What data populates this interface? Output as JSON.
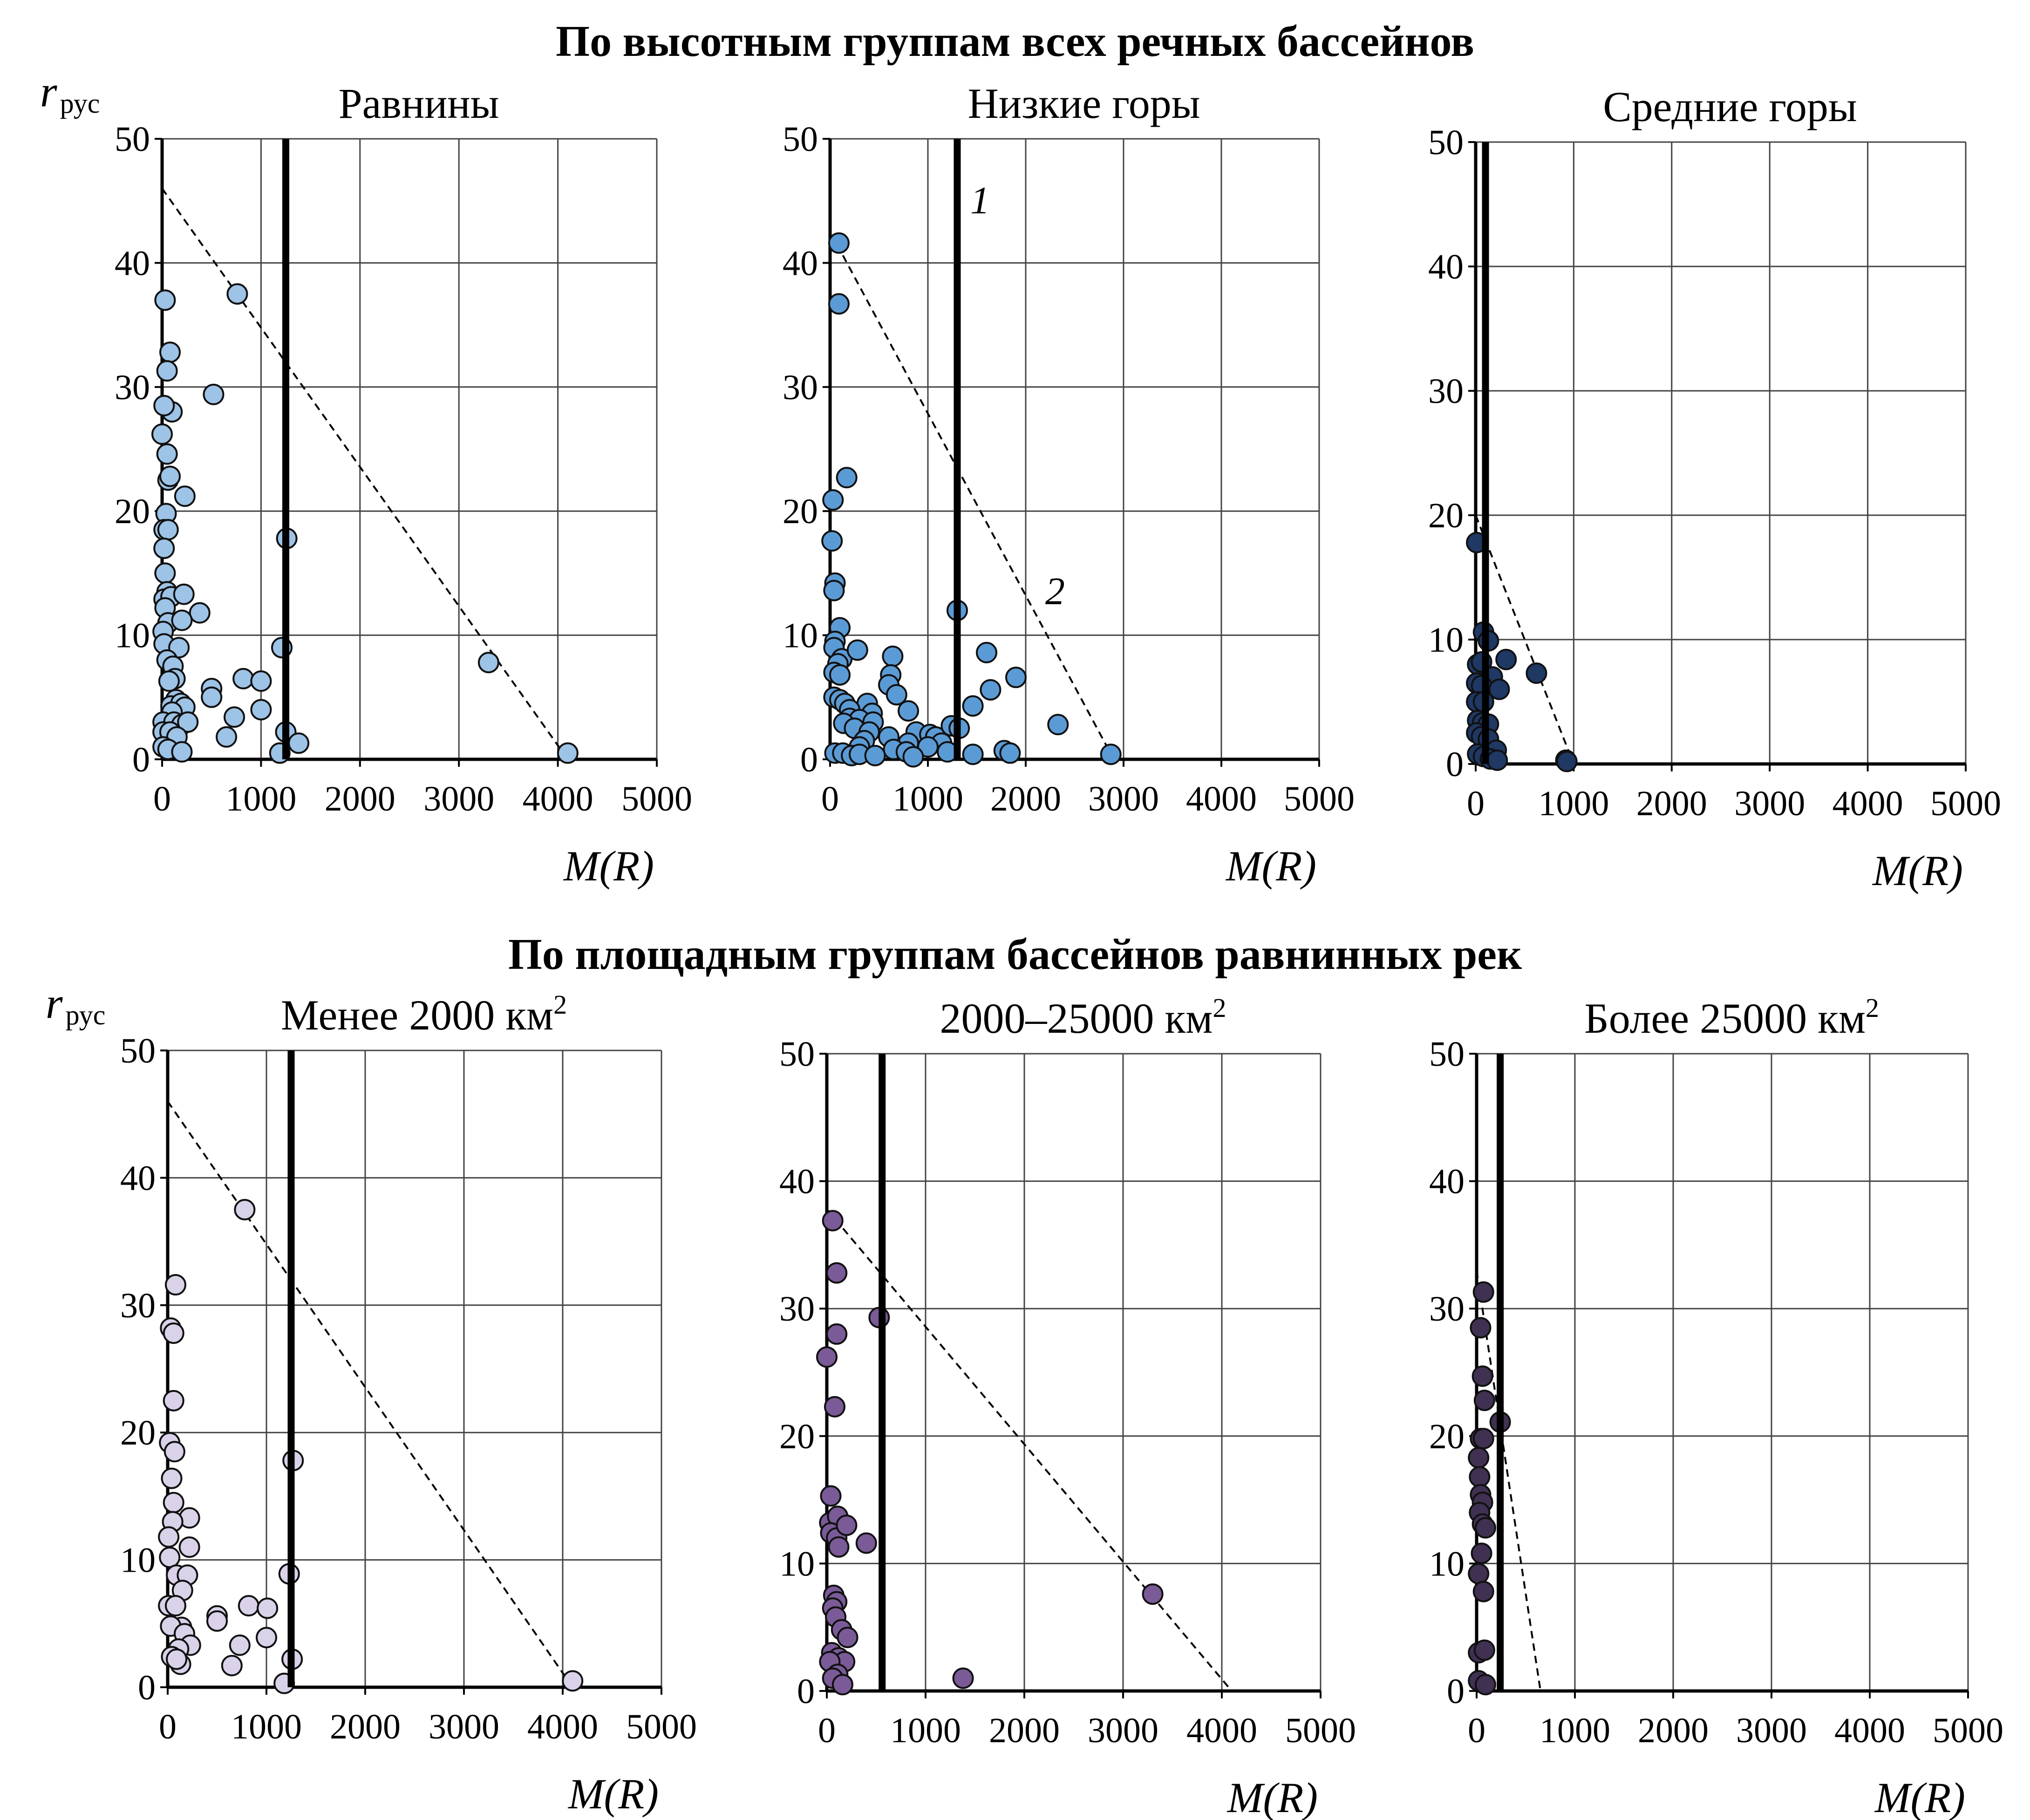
{
  "figure": {
    "section_titles": [
      "По высотным группам всех речных бассейнов",
      "По площадным группам бассейнов равнинных рек"
    ]
  },
  "chart_data": [
    {
      "type": "scatter",
      "section": 0,
      "title": "Равнины",
      "ylabel": "r",
      "ylabel_sub": "рус",
      "xlabel": "M(R)",
      "xlim": [
        0,
        5000
      ],
      "ylim": [
        0,
        50
      ],
      "xticks": [
        0,
        1000,
        2000,
        3000,
        4000,
        5000
      ],
      "yticks": [
        0,
        10,
        20,
        30,
        40,
        50
      ],
      "grid": true,
      "marker_color": "#9dc3e6",
      "vline_x": 1250,
      "dashed_line": [
        [
          0,
          46
        ],
        [
          4100,
          0
        ]
      ],
      "points": [
        [
          30,
          37
        ],
        [
          80,
          32.8
        ],
        [
          50,
          31.3
        ],
        [
          100,
          28
        ],
        [
          20,
          28.5
        ],
        [
          520,
          29.4
        ],
        [
          0,
          26.2
        ],
        [
          760,
          37.5
        ],
        [
          50,
          24.6
        ],
        [
          230,
          21.2
        ],
        [
          60,
          22.5
        ],
        [
          80,
          22.8
        ],
        [
          40,
          19.8
        ],
        [
          20,
          18.5
        ],
        [
          60,
          18.5
        ],
        [
          1260,
          17.8
        ],
        [
          20,
          17
        ],
        [
          30,
          15
        ],
        [
          50,
          13.5
        ],
        [
          20,
          12.9
        ],
        [
          90,
          13.1
        ],
        [
          220,
          13.3
        ],
        [
          380,
          11.8
        ],
        [
          30,
          12.2
        ],
        [
          60,
          11
        ],
        [
          10,
          10.3
        ],
        [
          200,
          11.2
        ],
        [
          20,
          9.3
        ],
        [
          170,
          9
        ],
        [
          50,
          8
        ],
        [
          1210,
          9
        ],
        [
          110,
          7.5
        ],
        [
          130,
          6.5
        ],
        [
          70,
          6.3
        ],
        [
          820,
          6.5
        ],
        [
          1000,
          6.3
        ],
        [
          500,
          5.7
        ],
        [
          140,
          4.8
        ],
        [
          90,
          4.3
        ],
        [
          190,
          4.5
        ],
        [
          230,
          4.2
        ],
        [
          100,
          3.8
        ],
        [
          500,
          5
        ],
        [
          1000,
          4
        ],
        [
          730,
          3.4
        ],
        [
          650,
          1.8
        ],
        [
          10,
          3
        ],
        [
          120,
          3
        ],
        [
          200,
          2.8
        ],
        [
          260,
          3
        ],
        [
          10,
          2.2
        ],
        [
          80,
          2.2
        ],
        [
          150,
          1.8
        ],
        [
          1250,
          2.2
        ],
        [
          1380,
          1.3
        ],
        [
          10,
          1
        ],
        [
          60,
          0.8
        ],
        [
          200,
          0.6
        ],
        [
          1190,
          0.5
        ],
        [
          4100,
          0.5
        ],
        [
          3300,
          7.8
        ]
      ]
    },
    {
      "type": "scatter",
      "section": 0,
      "title": "Низкие горы",
      "ylabel": "",
      "ylabel_sub": "",
      "xlabel": "M(R)",
      "xlim": [
        0,
        5000
      ],
      "ylim": [
        0,
        50
      ],
      "xticks": [
        0,
        1000,
        2000,
        3000,
        4000,
        5000
      ],
      "yticks": [
        0,
        10,
        20,
        30,
        40,
        50
      ],
      "grid": true,
      "marker_color": "#5b9bd5",
      "vline_x": 1300,
      "vline_label": "1",
      "dashed_line": [
        [
          70,
          41.5
        ],
        [
          2900,
          0
        ]
      ],
      "dashed_label": "2",
      "points": [
        [
          90,
          41.6
        ],
        [
          90,
          36.7
        ],
        [
          170,
          22.7
        ],
        [
          30,
          20.9
        ],
        [
          20,
          17.6
        ],
        [
          50,
          14.2
        ],
        [
          40,
          13.6
        ],
        [
          1300,
          12
        ],
        [
          100,
          10.6
        ],
        [
          50,
          9.5
        ],
        [
          40,
          9
        ],
        [
          120,
          8.1
        ],
        [
          80,
          7.7
        ],
        [
          40,
          7
        ],
        [
          100,
          6.8
        ],
        [
          1600,
          8.6
        ],
        [
          1900,
          6.6
        ],
        [
          640,
          8.3
        ],
        [
          620,
          6.8
        ],
        [
          600,
          6
        ],
        [
          680,
          5.2
        ],
        [
          1640,
          5.6
        ],
        [
          40,
          5
        ],
        [
          100,
          4.8
        ],
        [
          150,
          4.5
        ],
        [
          280,
          8.8
        ],
        [
          380,
          4.5
        ],
        [
          200,
          4
        ],
        [
          430,
          3.7
        ],
        [
          800,
          3.9
        ],
        [
          1460,
          4.3
        ],
        [
          200,
          3.3
        ],
        [
          300,
          3.2
        ],
        [
          440,
          3
        ],
        [
          140,
          2.9
        ],
        [
          250,
          2.5
        ],
        [
          880,
          2.2
        ],
        [
          1020,
          2
        ],
        [
          1080,
          1.8
        ],
        [
          1240,
          2.7
        ],
        [
          1320,
          2.5
        ],
        [
          2330,
          2.8
        ],
        [
          400,
          2.2
        ],
        [
          600,
          1.8
        ],
        [
          350,
          1.5
        ],
        [
          800,
          1.3
        ],
        [
          1140,
          1.3
        ],
        [
          1000,
          1
        ],
        [
          300,
          1
        ],
        [
          650,
          0.8
        ],
        [
          1780,
          0.7
        ],
        [
          1840,
          0.5
        ],
        [
          1460,
          0.4
        ],
        [
          50,
          0.5
        ],
        [
          130,
          0.5
        ],
        [
          220,
          0.3
        ],
        [
          300,
          0.4
        ],
        [
          460,
          0.3
        ],
        [
          780,
          0.6
        ],
        [
          850,
          0.2
        ],
        [
          1200,
          0.6
        ],
        [
          2870,
          0.4
        ]
      ]
    },
    {
      "type": "scatter",
      "section": 0,
      "title": "Средние горы",
      "ylabel": "",
      "ylabel_sub": "",
      "xlabel": "M(R)",
      "xlim": [
        0,
        5000
      ],
      "ylim": [
        0,
        50
      ],
      "xticks": [
        0,
        1000,
        2000,
        3000,
        4000,
        5000
      ],
      "yticks": [
        0,
        10,
        20,
        30,
        40,
        50
      ],
      "grid": true,
      "marker_color": "#1f3864",
      "vline_x": 100,
      "dashed_line": [
        [
          0,
          20
        ],
        [
          1000,
          0
        ]
      ],
      "points": [
        [
          10,
          17.8
        ],
        [
          80,
          10.6
        ],
        [
          130,
          9.9
        ],
        [
          20,
          8
        ],
        [
          60,
          8.2
        ],
        [
          170,
          7
        ],
        [
          310,
          8.4
        ],
        [
          620,
          7.3
        ],
        [
          10,
          6.5
        ],
        [
          60,
          6.3
        ],
        [
          240,
          6
        ],
        [
          10,
          5
        ],
        [
          80,
          5
        ],
        [
          20,
          3.5
        ],
        [
          70,
          3.3
        ],
        [
          130,
          3.2
        ],
        [
          10,
          2.5
        ],
        [
          60,
          2.2
        ],
        [
          130,
          2
        ],
        [
          210,
          1.1
        ],
        [
          20,
          0.8
        ],
        [
          80,
          0.6
        ],
        [
          150,
          0.4
        ],
        [
          220,
          0.3
        ],
        [
          920,
          0.3
        ],
        [
          930,
          0.2
        ]
      ]
    },
    {
      "type": "scatter",
      "section": 1,
      "title": "Менее 2000 км",
      "title_sup": "2",
      "ylabel": "r",
      "ylabel_sub": "рус",
      "xlabel": "M(R)",
      "xlim": [
        0,
        5000
      ],
      "ylim": [
        0,
        50
      ],
      "xticks": [
        0,
        1000,
        2000,
        3000,
        4000,
        5000
      ],
      "yticks": [
        0,
        10,
        20,
        30,
        40,
        50
      ],
      "grid": true,
      "marker_color": "#d9d2e9",
      "vline_x": 1250,
      "dashed_line": [
        [
          0,
          46
        ],
        [
          4100,
          0
        ]
      ],
      "points": [
        [
          780,
          37.5
        ],
        [
          80,
          31.6
        ],
        [
          30,
          28.2
        ],
        [
          60,
          27.8
        ],
        [
          60,
          22.5
        ],
        [
          20,
          19.2
        ],
        [
          70,
          18.5
        ],
        [
          1270,
          17.8
        ],
        [
          40,
          16.4
        ],
        [
          60,
          14.5
        ],
        [
          220,
          13.3
        ],
        [
          50,
          13
        ],
        [
          10,
          11.8
        ],
        [
          220,
          11
        ],
        [
          20,
          10.2
        ],
        [
          90,
          8.8
        ],
        [
          200,
          8.8
        ],
        [
          1230,
          8.9
        ],
        [
          150,
          7.6
        ],
        [
          10,
          6.4
        ],
        [
          80,
          6.4
        ],
        [
          820,
          6.4
        ],
        [
          1010,
          6.2
        ],
        [
          500,
          5.6
        ],
        [
          500,
          5.2
        ],
        [
          140,
          4.7
        ],
        [
          30,
          4.8
        ],
        [
          170,
          4.2
        ],
        [
          1000,
          3.9
        ],
        [
          730,
          3.3
        ],
        [
          230,
          3.3
        ],
        [
          110,
          3
        ],
        [
          40,
          2.4
        ],
        [
          130,
          1.8
        ],
        [
          650,
          1.7
        ],
        [
          1260,
          2.2
        ],
        [
          1180,
          0.3
        ],
        [
          4100,
          0.5
        ],
        [
          90,
          2.2
        ]
      ]
    },
    {
      "type": "scatter",
      "section": 1,
      "title": "2000–25000 км",
      "title_sup": "2",
      "ylabel": "",
      "ylabel_sub": "",
      "xlabel": "M(R)",
      "xlim": [
        0,
        5000
      ],
      "ylim": [
        0,
        50
      ],
      "xticks": [
        0,
        1000,
        2000,
        3000,
        4000,
        5000
      ],
      "yticks": [
        0,
        10,
        20,
        30,
        40,
        50
      ],
      "grid": true,
      "marker_color": "#7a5a97",
      "vline_x": 560,
      "dashed_line": [
        [
          0,
          37.8
        ],
        [
          4100,
          0
        ]
      ],
      "points": [
        [
          60,
          36.9
        ],
        [
          100,
          32.8
        ],
        [
          530,
          29.3
        ],
        [
          0,
          26.2
        ],
        [
          100,
          28
        ],
        [
          80,
          22.3
        ],
        [
          40,
          15.3
        ],
        [
          30,
          13.2
        ],
        [
          110,
          13.7
        ],
        [
          40,
          12.4
        ],
        [
          100,
          12
        ],
        [
          200,
          13
        ],
        [
          120,
          11.3
        ],
        [
          400,
          11.6
        ],
        [
          70,
          7.5
        ],
        [
          100,
          7
        ],
        [
          60,
          6.5
        ],
        [
          90,
          5.8
        ],
        [
          150,
          4.8
        ],
        [
          210,
          4.2
        ],
        [
          50,
          3
        ],
        [
          120,
          2.6
        ],
        [
          180,
          2.3
        ],
        [
          30,
          2.3
        ],
        [
          110,
          1.3
        ],
        [
          60,
          1
        ],
        [
          160,
          0.5
        ],
        [
          1380,
          1
        ],
        [
          3300,
          7.6
        ]
      ]
    },
    {
      "type": "scatter",
      "section": 1,
      "title": "Более 25000 км",
      "title_sup": "2",
      "ylabel": "",
      "ylabel_sub": "",
      "xlabel": "M(R)",
      "xlim": [
        0,
        5000
      ],
      "ylim": [
        0,
        50
      ],
      "xticks": [
        0,
        1000,
        2000,
        3000,
        4000,
        5000
      ],
      "yticks": [
        0,
        10,
        20,
        30,
        40,
        50
      ],
      "grid": true,
      "marker_color": "#403152",
      "vline_x": 240,
      "dashed_line": [
        [
          0,
          33
        ],
        [
          650,
          0
        ]
      ],
      "points": [
        [
          70,
          31.3
        ],
        [
          40,
          28.5
        ],
        [
          60,
          24.7
        ],
        [
          80,
          22.8
        ],
        [
          240,
          21.1
        ],
        [
          40,
          19.8
        ],
        [
          70,
          19.8
        ],
        [
          20,
          18.3
        ],
        [
          30,
          16.8
        ],
        [
          40,
          15.4
        ],
        [
          60,
          14.8
        ],
        [
          30,
          14
        ],
        [
          60,
          13.1
        ],
        [
          90,
          12.8
        ],
        [
          50,
          10.8
        ],
        [
          20,
          9.2
        ],
        [
          70,
          7.8
        ],
        [
          20,
          3
        ],
        [
          80,
          3.2
        ],
        [
          20,
          0.8
        ],
        [
          90,
          0.5
        ]
      ]
    }
  ]
}
